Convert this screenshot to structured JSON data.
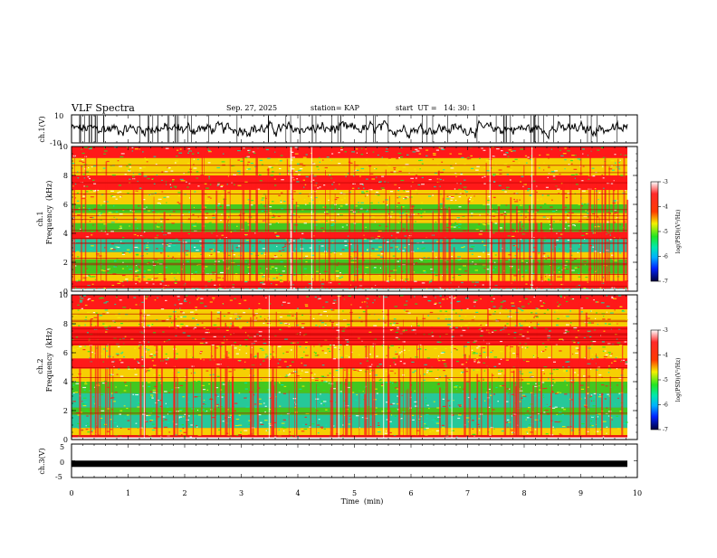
{
  "header": {
    "title": "VLF Spectra",
    "date": "Sep. 27, 2025",
    "station": "station= KAP",
    "start_ut": "start  UT =   14: 30: 1"
  },
  "chart_data": [
    {
      "id": "ch1-waveform",
      "type": "line",
      "ylabel": "ch.1(V)",
      "ylim": [
        -10,
        10
      ],
      "yticks": [
        "10",
        "-10"
      ],
      "x_range_min": [
        0,
        9.83
      ],
      "description_values": "noisy waveform oscillating roughly between -6 and +6 V"
    },
    {
      "id": "ch1-spectrogram",
      "type": "heatmap",
      "ylabel_top": "ch.1",
      "ylabel": "Frequency  (kHz)",
      "ylim": [
        0,
        10
      ],
      "yticks": [
        "0",
        "2",
        "4",
        "6",
        "8",
        "10"
      ],
      "colorbar": {
        "label": "log(PSD)(V²/Hz)",
        "range": [
          -7,
          -3
        ],
        "ticks": [
          "-3",
          "-4",
          "-5",
          "-6",
          "-7"
        ]
      }
    },
    {
      "id": "ch2-spectrogram",
      "type": "heatmap",
      "ylabel_top": "ch.2",
      "ylabel": "Frequency  (kHz)",
      "ylim": [
        0,
        10
      ],
      "yticks": [
        "0",
        "2",
        "4",
        "6",
        "8",
        "10"
      ],
      "colorbar": {
        "label": "log(PSD)(V²/Hz)",
        "range": [
          -7,
          -3
        ],
        "ticks": [
          "-3",
          "-4",
          "-5",
          "-6",
          "-7"
        ]
      }
    },
    {
      "id": "ch3-waveform",
      "type": "line",
      "ylabel": "ch.3(V)",
      "ylim": [
        -5,
        5
      ],
      "yticks": [
        "5",
        "0",
        "-5"
      ],
      "level": -0.9
    }
  ],
  "xaxis": {
    "label": "Time  (min)",
    "range": [
      0,
      10
    ],
    "ticks": [
      "0",
      "1",
      "2",
      "3",
      "4",
      "5",
      "6",
      "7",
      "8",
      "9",
      "10"
    ]
  },
  "colors": {
    "red": "#ff1a1a",
    "yellow": "#f4f000",
    "green": "#22e622",
    "cyan": "#00e8b0",
    "white": "#ffffff",
    "blue": "#0022ff",
    "navy": "#00003c"
  }
}
